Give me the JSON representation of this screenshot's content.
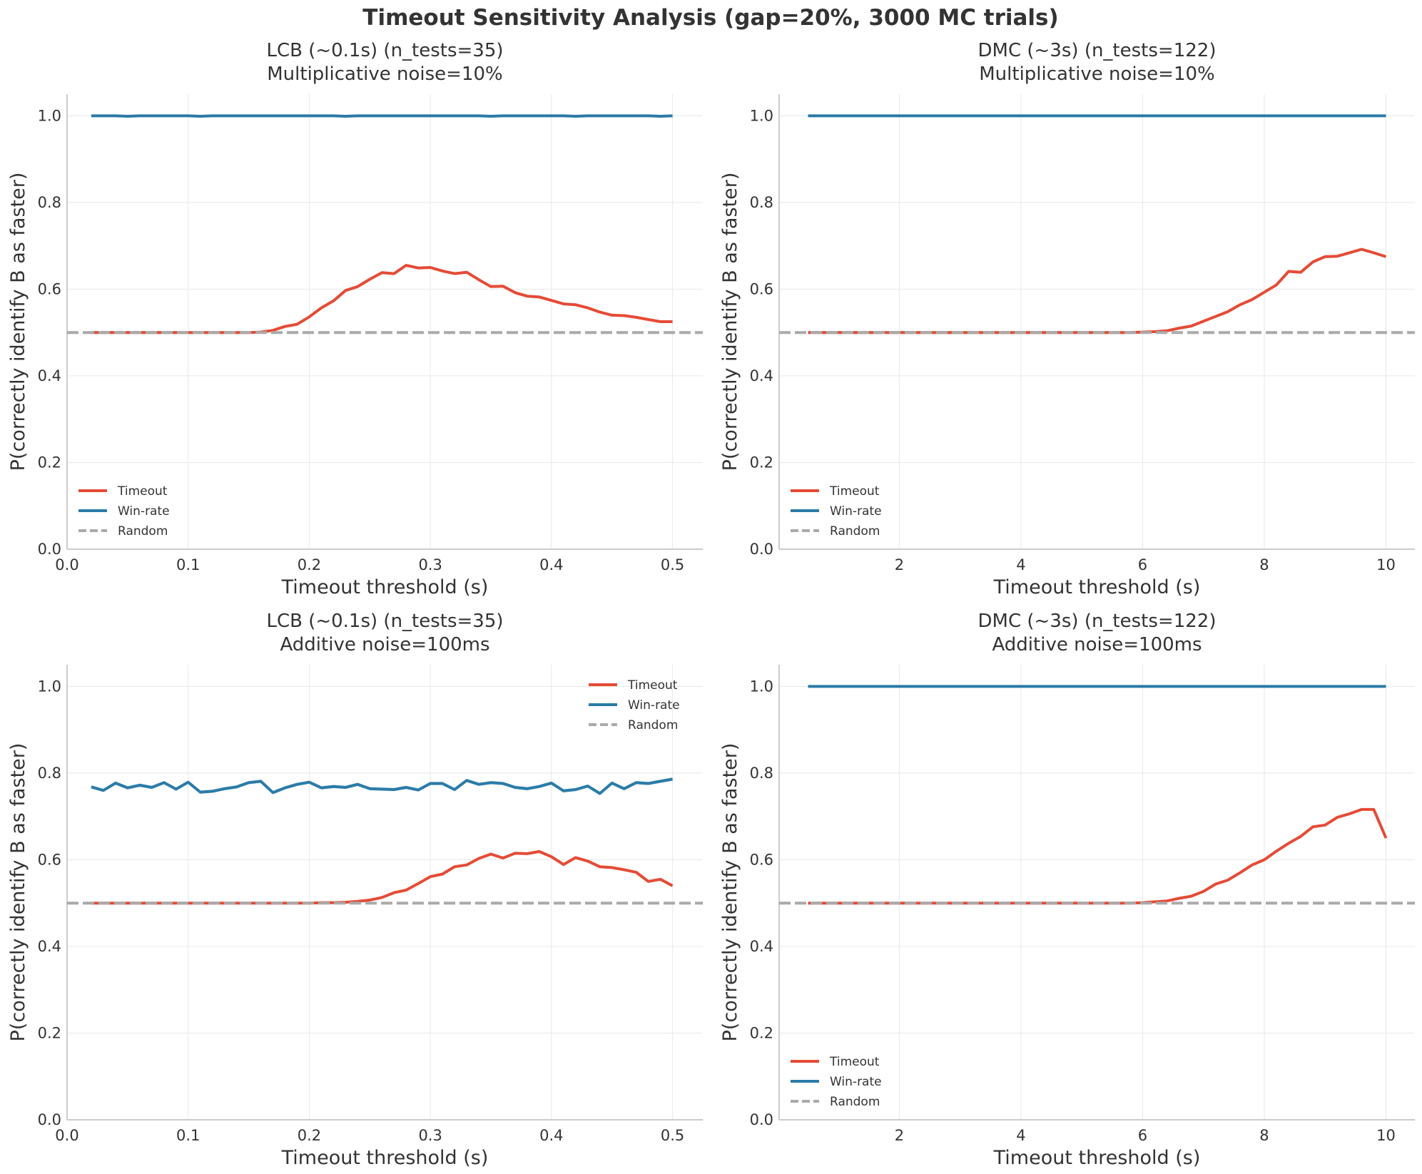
{
  "figure_title": "Timeout Sensitivity Analysis (gap=20%, 3000 MC trials)",
  "colors": {
    "timeout": "#e54b36",
    "winrate": "#2b7ba8",
    "random": "#aaaaaa",
    "band": "#a9cfe3"
  },
  "chart_data": [
    {
      "type": "line",
      "title": "LCB (~0.1s) (n_tests=35)",
      "subtitle": "Multiplicative noise=10%",
      "xlabel": "Timeout threshold (s)",
      "ylabel": "P(correctly identify B as faster)",
      "xlim": [
        0.0,
        0.525
      ],
      "ylim": [
        0.0,
        1.05
      ],
      "xticks": [
        0.0,
        0.1,
        0.2,
        0.3,
        0.4,
        0.5
      ],
      "xtick_labels": [
        "0.0",
        "0.1",
        "0.2",
        "0.3",
        "0.4",
        "0.5"
      ],
      "yticks": [
        0.0,
        0.2,
        0.4,
        0.6,
        0.8,
        1.0
      ],
      "ytick_labels": [
        "0.0",
        "0.2",
        "0.4",
        "0.6",
        "0.8",
        "1.0"
      ],
      "grid": true,
      "legend_position": "lower-left",
      "series": [
        {
          "name": "Timeout",
          "color": "#e54b36",
          "x": [
            0.02,
            0.03,
            0.04,
            0.05,
            0.06,
            0.07,
            0.08,
            0.09,
            0.1,
            0.11,
            0.12,
            0.13,
            0.14,
            0.15,
            0.16,
            0.17,
            0.18,
            0.19,
            0.2,
            0.21,
            0.22,
            0.23,
            0.24,
            0.25,
            0.26,
            0.27,
            0.28,
            0.29,
            0.3,
            0.31,
            0.32,
            0.33,
            0.34,
            0.35,
            0.36,
            0.37,
            0.38,
            0.39,
            0.4,
            0.41,
            0.42,
            0.43,
            0.44,
            0.45,
            0.46,
            0.47,
            0.48,
            0.49,
            0.5
          ],
          "y": [
            0.5,
            0.5,
            0.5,
            0.5,
            0.5,
            0.5,
            0.5,
            0.5,
            0.5,
            0.5,
            0.5,
            0.5,
            0.5,
            0.5,
            0.501,
            0.505,
            0.514,
            0.519,
            0.536,
            0.557,
            0.573,
            0.597,
            0.606,
            0.623,
            0.638,
            0.636,
            0.655,
            0.649,
            0.65,
            0.642,
            0.636,
            0.639,
            0.622,
            0.606,
            0.607,
            0.592,
            0.584,
            0.582,
            0.574,
            0.566,
            0.564,
            0.557,
            0.547,
            0.54,
            0.539,
            0.535,
            0.53,
            0.525,
            0.525
          ]
        },
        {
          "name": "Win-rate",
          "color": "#2b7ba8",
          "x": [
            0.02,
            0.03,
            0.04,
            0.05,
            0.06,
            0.07,
            0.08,
            0.09,
            0.1,
            0.11,
            0.12,
            0.13,
            0.14,
            0.15,
            0.16,
            0.17,
            0.18,
            0.19,
            0.2,
            0.21,
            0.22,
            0.23,
            0.24,
            0.25,
            0.26,
            0.27,
            0.28,
            0.29,
            0.3,
            0.31,
            0.32,
            0.33,
            0.34,
            0.35,
            0.36,
            0.37,
            0.38,
            0.39,
            0.4,
            0.41,
            0.42,
            0.43,
            0.44,
            0.45,
            0.46,
            0.47,
            0.48,
            0.49,
            0.5
          ],
          "y": [
            1.0,
            1.0,
            1.0,
            0.999,
            1.0,
            1.0,
            1.0,
            1.0,
            1.0,
            0.999,
            1.0,
            1.0,
            1.0,
            1.0,
            1.0,
            1.0,
            1.0,
            1.0,
            1.0,
            1.0,
            1.0,
            0.999,
            1.0,
            1.0,
            1.0,
            1.0,
            1.0,
            1.0,
            1.0,
            1.0,
            1.0,
            1.0,
            1.0,
            0.999,
            1.0,
            1.0,
            1.0,
            1.0,
            1.0,
            1.0,
            0.999,
            1.0,
            1.0,
            1.0,
            1.0,
            1.0,
            1.0,
            0.999,
            1.0
          ]
        },
        {
          "name": "Random",
          "color": "#aaaaaa",
          "style": "dashed",
          "x": [
            0.0,
            0.525
          ],
          "y": [
            0.5,
            0.5
          ]
        }
      ]
    },
    {
      "type": "line",
      "title": "DMC (~3s) (n_tests=122)",
      "subtitle": "Multiplicative noise=10%",
      "xlabel": "Timeout threshold (s)",
      "ylabel": "P(correctly identify B as faster)",
      "xlim": [
        0.025,
        10.475
      ],
      "ylim": [
        0.0,
        1.05
      ],
      "xticks": [
        2,
        4,
        6,
        8,
        10
      ],
      "xtick_labels": [
        "2",
        "4",
        "6",
        "8",
        "10"
      ],
      "yticks": [
        0.0,
        0.2,
        0.4,
        0.6,
        0.8,
        1.0
      ],
      "ytick_labels": [
        "0.0",
        "0.2",
        "0.4",
        "0.6",
        "0.8",
        "1.0"
      ],
      "grid": true,
      "legend_position": "lower-left",
      "series": [
        {
          "name": "Timeout",
          "color": "#e54b36",
          "x": [
            0.5,
            5.8,
            6.0,
            6.2,
            6.4,
            6.6,
            6.8,
            7.0,
            7.2,
            7.4,
            7.6,
            7.8,
            8.0,
            8.2,
            8.4,
            8.6,
            8.8,
            9.0,
            9.2,
            9.4,
            9.6,
            9.8,
            10.0
          ],
          "y": [
            0.5,
            0.5,
            0.501,
            0.502,
            0.504,
            0.51,
            0.515,
            0.526,
            0.537,
            0.548,
            0.564,
            0.576,
            0.593,
            0.61,
            0.641,
            0.639,
            0.663,
            0.675,
            0.676,
            0.684,
            0.692,
            0.684,
            0.675
          ]
        },
        {
          "name": "Win-rate",
          "color": "#2b7ba8",
          "x": [
            0.5,
            10.0
          ],
          "y": [
            1.0,
            1.0
          ]
        },
        {
          "name": "Random",
          "color": "#aaaaaa",
          "style": "dashed",
          "x": [
            0.025,
            10.475
          ],
          "y": [
            0.5,
            0.5
          ]
        }
      ]
    },
    {
      "type": "line",
      "title": "LCB (~0.1s) (n_tests=35)",
      "subtitle": "Additive noise=100ms",
      "xlabel": "Timeout threshold (s)",
      "ylabel": "P(correctly identify B as faster)",
      "xlim": [
        0.0,
        0.525
      ],
      "ylim": [
        0.0,
        1.05
      ],
      "xticks": [
        0.0,
        0.1,
        0.2,
        0.3,
        0.4,
        0.5
      ],
      "xtick_labels": [
        "0.0",
        "0.1",
        "0.2",
        "0.3",
        "0.4",
        "0.5"
      ],
      "yticks": [
        0.0,
        0.2,
        0.4,
        0.6,
        0.8,
        1.0
      ],
      "ytick_labels": [
        "0.0",
        "0.2",
        "0.4",
        "0.6",
        "0.8",
        "1.0"
      ],
      "grid": true,
      "legend_position": "upper-right",
      "series": [
        {
          "name": "Timeout",
          "color": "#e54b36",
          "x": [
            0.02,
            0.03,
            0.04,
            0.05,
            0.06,
            0.07,
            0.08,
            0.09,
            0.1,
            0.11,
            0.12,
            0.13,
            0.14,
            0.15,
            0.16,
            0.17,
            0.18,
            0.19,
            0.2,
            0.21,
            0.22,
            0.23,
            0.24,
            0.25,
            0.26,
            0.27,
            0.28,
            0.29,
            0.3,
            0.31,
            0.32,
            0.33,
            0.34,
            0.35,
            0.36,
            0.37,
            0.38,
            0.39,
            0.4,
            0.41,
            0.42,
            0.43,
            0.44,
            0.45,
            0.46,
            0.47,
            0.48,
            0.49,
            0.5
          ],
          "y": [
            0.5,
            0.5,
            0.5,
            0.5,
            0.5,
            0.5,
            0.5,
            0.5,
            0.5,
            0.5,
            0.5,
            0.5,
            0.5,
            0.5,
            0.5,
            0.5,
            0.5,
            0.5,
            0.5,
            0.501,
            0.501,
            0.502,
            0.504,
            0.507,
            0.513,
            0.524,
            0.53,
            0.545,
            0.561,
            0.567,
            0.584,
            0.588,
            0.603,
            0.613,
            0.604,
            0.615,
            0.614,
            0.619,
            0.607,
            0.589,
            0.605,
            0.597,
            0.584,
            0.582,
            0.577,
            0.571,
            0.55,
            0.555,
            0.54
          ]
        },
        {
          "name": "Win-rate",
          "color": "#2b7ba8",
          "band": 0.004,
          "x": [
            0.02,
            0.03,
            0.04,
            0.05,
            0.06,
            0.07,
            0.08,
            0.09,
            0.1,
            0.11,
            0.12,
            0.13,
            0.14,
            0.15,
            0.16,
            0.17,
            0.18,
            0.19,
            0.2,
            0.21,
            0.22,
            0.23,
            0.24,
            0.25,
            0.26,
            0.27,
            0.28,
            0.29,
            0.3,
            0.31,
            0.32,
            0.33,
            0.34,
            0.35,
            0.36,
            0.37,
            0.38,
            0.39,
            0.4,
            0.41,
            0.42,
            0.43,
            0.44,
            0.45,
            0.46,
            0.47,
            0.48,
            0.49,
            0.5
          ],
          "y": [
            0.768,
            0.76,
            0.777,
            0.766,
            0.772,
            0.767,
            0.778,
            0.763,
            0.779,
            0.756,
            0.758,
            0.764,
            0.768,
            0.778,
            0.781,
            0.755,
            0.766,
            0.774,
            0.779,
            0.766,
            0.769,
            0.767,
            0.774,
            0.764,
            0.763,
            0.762,
            0.767,
            0.761,
            0.776,
            0.776,
            0.762,
            0.783,
            0.774,
            0.778,
            0.776,
            0.767,
            0.764,
            0.769,
            0.777,
            0.759,
            0.762,
            0.77,
            0.753,
            0.777,
            0.764,
            0.778,
            0.776,
            0.781,
            0.786
          ]
        },
        {
          "name": "Random",
          "color": "#aaaaaa",
          "style": "dashed",
          "x": [
            0.0,
            0.525
          ],
          "y": [
            0.5,
            0.5
          ]
        }
      ]
    },
    {
      "type": "line",
      "title": "DMC (~3s) (n_tests=122)",
      "subtitle": "Additive noise=100ms",
      "xlabel": "Timeout threshold (s)",
      "ylabel": "P(correctly identify B as faster)",
      "xlim": [
        0.025,
        10.475
      ],
      "ylim": [
        0.0,
        1.05
      ],
      "xticks": [
        2,
        4,
        6,
        8,
        10
      ],
      "xtick_labels": [
        "2",
        "4",
        "6",
        "8",
        "10"
      ],
      "yticks": [
        0.0,
        0.2,
        0.4,
        0.6,
        0.8,
        1.0
      ],
      "ytick_labels": [
        "0.0",
        "0.2",
        "0.4",
        "0.6",
        "0.8",
        "1.0"
      ],
      "grid": true,
      "legend_position": "lower-left",
      "series": [
        {
          "name": "Timeout",
          "color": "#e54b36",
          "x": [
            0.5,
            5.8,
            6.0,
            6.2,
            6.4,
            6.6,
            6.8,
            7.0,
            7.2,
            7.4,
            7.6,
            7.8,
            8.0,
            8.2,
            8.4,
            8.6,
            8.8,
            9.0,
            9.2,
            9.4,
            9.6,
            9.8,
            10.0
          ],
          "y": [
            0.5,
            0.5,
            0.501,
            0.503,
            0.505,
            0.511,
            0.516,
            0.527,
            0.544,
            0.553,
            0.57,
            0.588,
            0.6,
            0.62,
            0.638,
            0.654,
            0.676,
            0.68,
            0.698,
            0.706,
            0.716,
            0.716,
            0.65
          ]
        },
        {
          "name": "Win-rate",
          "color": "#2b7ba8",
          "x": [
            0.5,
            10.0
          ],
          "y": [
            1.0,
            1.0
          ]
        },
        {
          "name": "Random",
          "color": "#aaaaaa",
          "style": "dashed",
          "x": [
            0.025,
            10.475
          ],
          "y": [
            0.5,
            0.5
          ]
        }
      ]
    }
  ]
}
